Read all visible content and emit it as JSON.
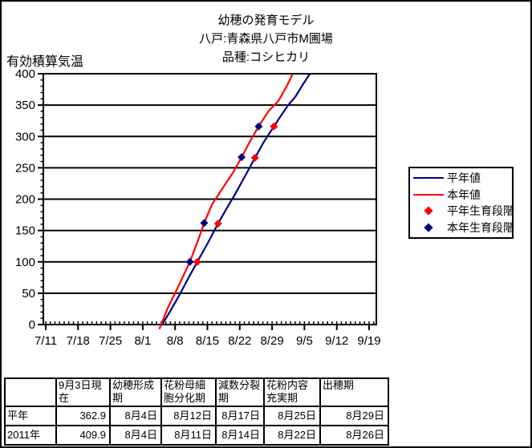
{
  "page": {
    "title_lines": [
      "幼穂の発育モデル",
      "八戸:青森県八戸市M圃場",
      "品種:コシヒカリ"
    ]
  },
  "chart_data": {
    "type": "line",
    "title": "幼穂の発育モデル",
    "subtitle": "八戸:青森県八戸市M圃場 品種:コシヒカリ",
    "y_axis_title": "有効積算気温",
    "ylim": [
      0,
      400
    ],
    "ytick_step": 50,
    "x_tick_labels": [
      "7/11",
      "7/18",
      "7/25",
      "8/1",
      "8/8",
      "8/15",
      "8/22",
      "8/29",
      "9/5",
      "9/12",
      "9/19"
    ],
    "x_days_per_major_tick": 7,
    "grid": "horizontal",
    "legend_position": "right",
    "series": [
      {
        "name": "平年値",
        "kind": "line",
        "color": "#000080",
        "points": [
          [
            25.2,
            0
          ],
          [
            27,
            22
          ],
          [
            29,
            48
          ],
          [
            31,
            76
          ],
          [
            32.8,
            100
          ],
          [
            35,
            129
          ],
          [
            37.3,
            161
          ],
          [
            39,
            183
          ],
          [
            41,
            208
          ],
          [
            43,
            235
          ],
          [
            45.3,
            266
          ],
          [
            47.2,
            291
          ],
          [
            49.4,
            316
          ],
          [
            51,
            334
          ],
          [
            52.5,
            350
          ],
          [
            54,
            363
          ],
          [
            55.5,
            381
          ],
          [
            57.2,
            400
          ]
        ]
      },
      {
        "name": "本年値",
        "kind": "line",
        "color": "#ff0000",
        "points": [
          [
            24.6,
            -7
          ],
          [
            26.5,
            28
          ],
          [
            28,
            50
          ],
          [
            29.6,
            75
          ],
          [
            31.2,
            100
          ],
          [
            33,
            135
          ],
          [
            34.3,
            162
          ],
          [
            36,
            192
          ],
          [
            37.3,
            206
          ],
          [
            38.6,
            221
          ],
          [
            40.5,
            242
          ],
          [
            42.4,
            267
          ],
          [
            44.2,
            292
          ],
          [
            46.1,
            316
          ],
          [
            48.2,
            340
          ],
          [
            50.4,
            357
          ],
          [
            52,
            378
          ],
          [
            53.5,
            400
          ]
        ]
      },
      {
        "name": "平年生育段階",
        "kind": "diamond",
        "color": "#ff0000",
        "points": [
          [
            32.8,
            100
          ],
          [
            37.3,
            161
          ],
          [
            45.3,
            266
          ],
          [
            49.4,
            316
          ]
        ],
        "dates": [
          "8月12日",
          "8月17日",
          "8月25日",
          "8月29日"
        ]
      },
      {
        "name": "本年生育段階",
        "kind": "diamond",
        "color": "#000080",
        "points": [
          [
            31.2,
            100
          ],
          [
            34.3,
            162
          ],
          [
            42.4,
            267
          ],
          [
            46.1,
            316
          ]
        ],
        "dates": [
          "8月11日",
          "8月14日",
          "8月22日",
          "8月26日"
        ]
      }
    ]
  },
  "legend": {
    "items": [
      {
        "label": "平年値",
        "symbol": "line",
        "color": "#000080"
      },
      {
        "label": "本年値",
        "symbol": "line",
        "color": "#ff0000"
      },
      {
        "label": "平年生育段階",
        "symbol": "diamond",
        "color": "#ff0000"
      },
      {
        "label": "本年生育段階",
        "symbol": "diamond",
        "color": "#000080"
      }
    ]
  },
  "table": {
    "headers": [
      "",
      "9月3日現\n在",
      "幼穂形成\n期",
      "花粉母細\n胞分化期",
      "減数分裂\n期",
      "花粉内容\n充実期",
      "出穂期"
    ],
    "rows": [
      {
        "label": "平年",
        "cells": [
          "362.9",
          "8月4日",
          "8月12日",
          "8月17日",
          "8月25日",
          "8月29日"
        ]
      },
      {
        "label": "2011年",
        "cells": [
          "409.9",
          "8月4日",
          "8月11日",
          "8月14日",
          "8月22日",
          "8月26日"
        ]
      }
    ]
  },
  "colors": {
    "normal_year": "#000080",
    "current_year": "#ff0000",
    "axis": "#000000",
    "background": "#ffffff"
  }
}
